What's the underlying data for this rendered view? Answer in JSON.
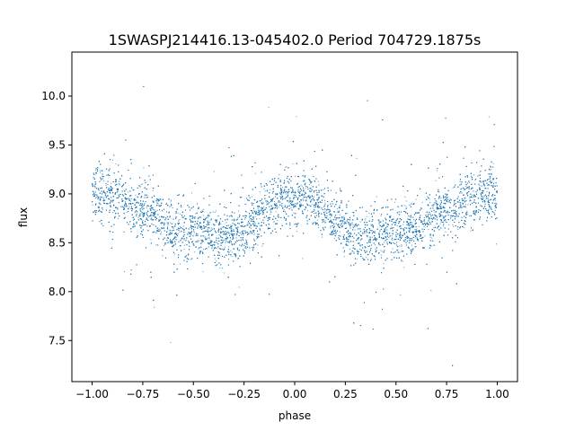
{
  "chart_data": {
    "type": "scatter",
    "title": "1SWASPJ214416.13-045402.0 Period 704729.1875s",
    "xlabel": "phase",
    "ylabel": "flux",
    "xlim": [
      -1.1,
      1.1
    ],
    "ylim": [
      7.08,
      10.45
    ],
    "xticks": [
      -1.0,
      -0.75,
      -0.5,
      -0.25,
      0.0,
      0.25,
      0.5,
      0.75,
      1.0
    ],
    "xtick_labels": [
      "−1.00",
      "−0.75",
      "−0.50",
      "−0.25",
      "0.00",
      "0.25",
      "0.50",
      "0.75",
      "1.00"
    ],
    "yticks": [
      7.5,
      8.0,
      8.5,
      9.0,
      9.5,
      10.0
    ],
    "ytick_labels": [
      "7.5",
      "8.0",
      "8.5",
      "9.0",
      "9.5",
      "10.0"
    ],
    "grid": false,
    "legend": "none",
    "marker_color": "#1f77b4",
    "phase_fold": "symmetric about 0, period 1 in phase",
    "trend": {
      "phase": [
        0.0,
        0.05,
        0.1,
        0.15,
        0.2,
        0.25,
        0.3,
        0.35,
        0.4,
        0.45,
        0.5,
        0.55,
        0.6,
        0.65,
        0.7,
        0.75,
        0.8,
        0.85,
        0.9,
        0.95,
        1.0
      ],
      "flux": [
        8.97,
        8.95,
        8.9,
        8.82,
        8.73,
        8.64,
        8.56,
        8.55,
        8.58,
        8.62,
        8.63,
        8.62,
        8.63,
        8.72,
        8.8,
        8.83,
        8.87,
        8.93,
        8.97,
        9.0,
        9.0
      ]
    },
    "scatter_sigma": 0.14,
    "point_count": 12000
  }
}
